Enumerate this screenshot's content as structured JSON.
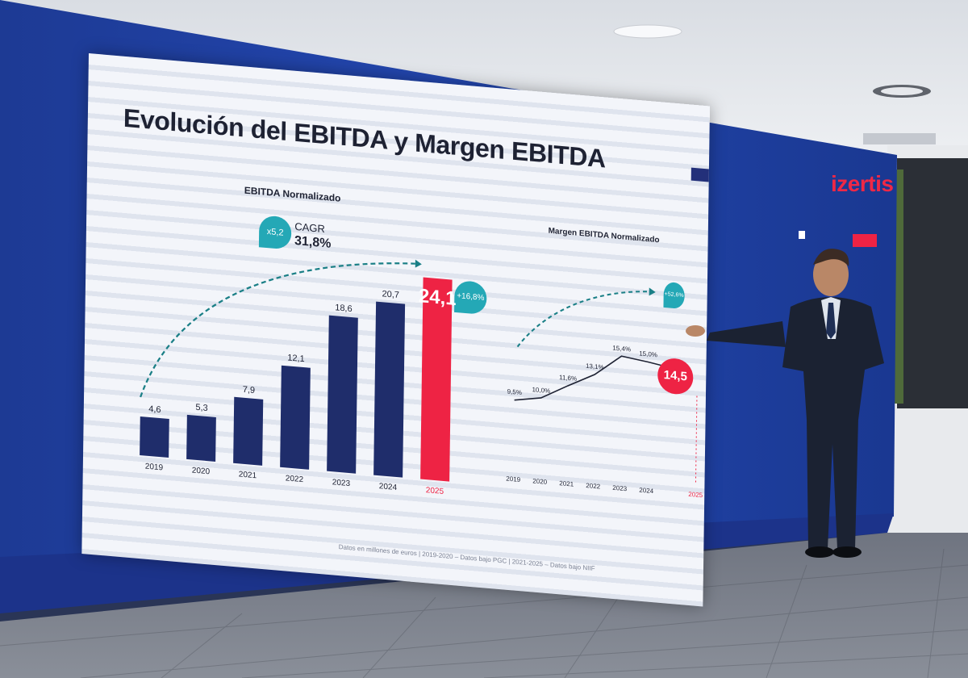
{
  "slide": {
    "title": "Evolución del EBITDA y Margen EBITDA",
    "ebitda_subtitle": "EBITDA Normalizado",
    "margin_subtitle": "Margen EBITDA Normalizado",
    "multiplier_badge": "x5,2",
    "cagr_label": "CAGR",
    "cagr_value": "31,8%",
    "ebitda_growth_badge": "+16,8%",
    "margin_growth_badge": "+52,6%",
    "footnote": "Datos en millones de euros  |  2019-2020 – Datos bajo PGC  |  2021-2025 – Datos bajo NIIF"
  },
  "chart_data": [
    {
      "type": "bar",
      "title": "EBITDA Normalizado",
      "categories": [
        "2019",
        "2020",
        "2021",
        "2022",
        "2023",
        "2024",
        "2025"
      ],
      "values": [
        4.6,
        5.3,
        7.9,
        12.1,
        18.6,
        20.7,
        24.1
      ],
      "value_labels": [
        "4,6",
        "5,3",
        "7,9",
        "12,1",
        "18,6",
        "20,7",
        "24,1"
      ],
      "highlight_index": 6
    },
    {
      "type": "line",
      "title": "Margen EBITDA Normalizado",
      "categories": [
        "2019",
        "2020",
        "2021",
        "2022",
        "2023",
        "2024",
        "2025"
      ],
      "values": [
        9.5,
        10.0,
        11.6,
        13.1,
        15.4,
        15.0,
        14.5
      ],
      "value_labels": [
        "9,5%",
        "10,0%",
        "11,6%",
        "13,1%",
        "15,4%",
        "15,0%",
        "14,5"
      ],
      "highlight_index": 6
    }
  ],
  "brand": {
    "logo_text": "izertis"
  },
  "colors": {
    "bar": "#1f2d6b",
    "highlight": "#ee2344",
    "teal": "#24a8b6",
    "led_wall": "#1d3d9e",
    "logo": "#ef2846"
  }
}
